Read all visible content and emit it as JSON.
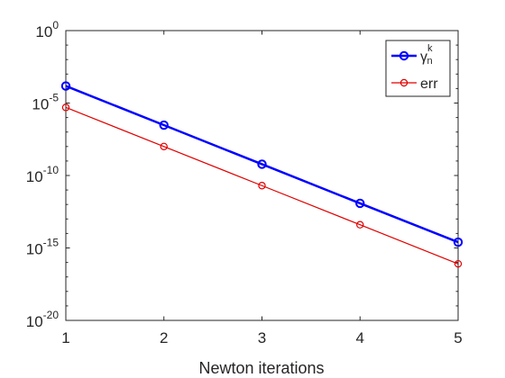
{
  "chart_data": {
    "type": "line",
    "title": "",
    "xlabel": "Newton iterations",
    "ylabel": "",
    "xlim": [
      1,
      5
    ],
    "ylim": [
      1e-20,
      1
    ],
    "yscale": "log",
    "grid": false,
    "legend_position": "top-right",
    "x": [
      1,
      2,
      3,
      4,
      5
    ],
    "xticks": [
      "1",
      "2",
      "3",
      "4",
      "5"
    ],
    "yticks": [
      {
        "base": "10",
        "exp": "-20",
        "value": 1e-20
      },
      {
        "base": "10",
        "exp": "-15",
        "value": 1e-15
      },
      {
        "base": "10",
        "exp": "-10",
        "value": 1e-10
      },
      {
        "base": "10",
        "exp": "-5",
        "value": 1e-05
      },
      {
        "base": "10",
        "exp": "0",
        "value": 1
      }
    ],
    "series": [
      {
        "name": "γ",
        "name_sup": "k",
        "name_sub": "n",
        "color": "#0000ff",
        "marker": "circle",
        "values": [
          0.00015,
          3e-07,
          6e-10,
          1.2e-12,
          2.5e-15
        ]
      },
      {
        "name": "err",
        "name_sup": "",
        "name_sub": "",
        "color": "#e00000",
        "marker": "circle",
        "values": [
          5e-06,
          1e-08,
          2e-11,
          4e-14,
          8e-17
        ]
      }
    ]
  }
}
